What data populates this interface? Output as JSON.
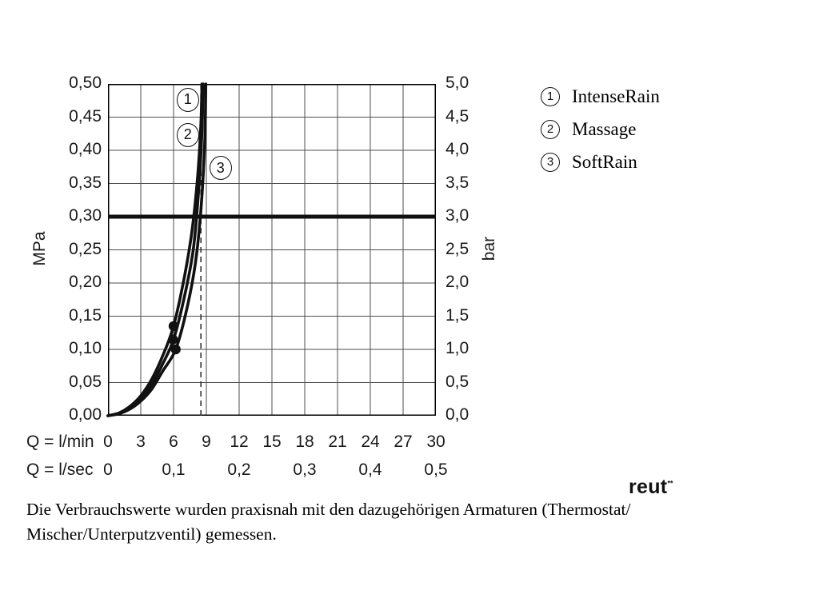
{
  "legend": {
    "items": [
      {
        "number": "1",
        "label": "IntenseRain"
      },
      {
        "number": "2",
        "label": "Massage"
      },
      {
        "number": "3",
        "label": "SoftRain"
      }
    ]
  },
  "caption": {
    "line1": "Die Verbrauchswerte wurden praxisnah mit den dazugehörigen Armaturen (Thermostat/",
    "line2": "Mischer/Unterputzventil) gemessen."
  },
  "watermark": {
    "text": "reut",
    "mark": "**"
  },
  "chart_data": {
    "type": "line",
    "title": "",
    "grid": true,
    "y_left": {
      "label": "MPa",
      "min": 0,
      "max": 0.5,
      "step": 0.05,
      "ticks": [
        "0,50",
        "0,45",
        "0,40",
        "0,35",
        "0,30",
        "0,25",
        "0,20",
        "0,15",
        "0,10",
        "0,05",
        "0,00"
      ]
    },
    "y_right": {
      "label": "bar",
      "min": 0,
      "max": 5.0,
      "step": 0.5,
      "ticks": [
        "5,0",
        "4,5",
        "4,0",
        "3,5",
        "3,0",
        "2,5",
        "2,0",
        "1,5",
        "1,0",
        "0,5",
        "0,0"
      ]
    },
    "x_lmin": {
      "label": "Q = l/min",
      "min": 0,
      "max": 30,
      "step": 3,
      "ticks": [
        "0",
        "3",
        "6",
        "9",
        "12",
        "15",
        "18",
        "21",
        "24",
        "27",
        "30"
      ]
    },
    "x_lsec": {
      "label": "Q = l/sec",
      "min": 0,
      "max": 0.5,
      "step": 0.1,
      "ticks": [
        "0",
        "0,1",
        "0,2",
        "0,3",
        "0,4",
        "0,5"
      ]
    },
    "reference_line_mpa": 0.3,
    "dashed_vline_lmin": 8.5,
    "series": [
      {
        "name": "IntenseRain",
        "number": "1",
        "points": [
          [
            0,
            0
          ],
          [
            1,
            0.004
          ],
          [
            2,
            0.014
          ],
          [
            3,
            0.03
          ],
          [
            4,
            0.055
          ],
          [
            5,
            0.09
          ],
          [
            6,
            0.135
          ],
          [
            7,
            0.21
          ],
          [
            7.7,
            0.28
          ],
          [
            8.2,
            0.36
          ],
          [
            8.5,
            0.44
          ],
          [
            8.6,
            0.5
          ]
        ]
      },
      {
        "name": "Massage",
        "number": "2",
        "points": [
          [
            0,
            0
          ],
          [
            1,
            0.0035
          ],
          [
            2,
            0.012
          ],
          [
            3,
            0.026
          ],
          [
            4,
            0.047
          ],
          [
            5,
            0.078
          ],
          [
            6,
            0.115
          ],
          [
            7,
            0.18
          ],
          [
            7.8,
            0.25
          ],
          [
            8.3,
            0.34
          ],
          [
            8.6,
            0.43
          ],
          [
            8.7,
            0.5
          ]
        ]
      },
      {
        "name": "SoftRain",
        "number": "3",
        "points": [
          [
            0,
            0
          ],
          [
            1,
            0.003
          ],
          [
            2,
            0.01
          ],
          [
            3,
            0.022
          ],
          [
            4,
            0.04
          ],
          [
            5,
            0.067
          ],
          [
            6.2,
            0.1
          ],
          [
            7.2,
            0.16
          ],
          [
            8.0,
            0.23
          ],
          [
            8.5,
            0.31
          ],
          [
            8.85,
            0.41
          ],
          [
            8.95,
            0.5
          ]
        ]
      }
    ],
    "dots": [
      {
        "series": "IntenseRain",
        "q": 6.0,
        "p": 0.135
      },
      {
        "series": "Massage",
        "q": 5.95,
        "p": 0.115
      },
      {
        "series": "SoftRain",
        "q": 6.2,
        "p": 0.1
      }
    ],
    "annotations": [
      {
        "number": "1",
        "q": 7.3,
        "p": 0.476
      },
      {
        "number": "2",
        "q": 7.3,
        "p": 0.423
      },
      {
        "number": "3",
        "q": 10.3,
        "p": 0.373
      }
    ]
  }
}
